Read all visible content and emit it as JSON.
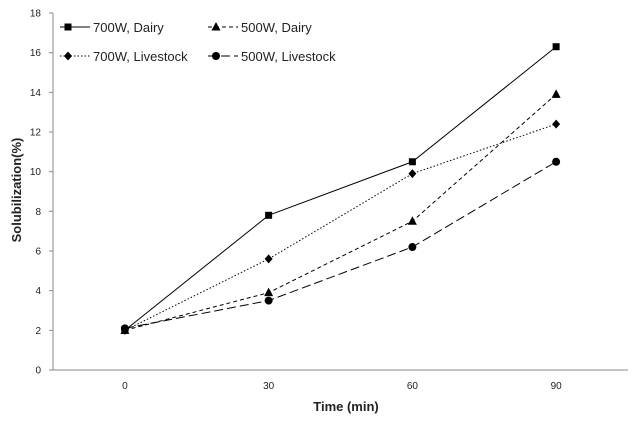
{
  "chart_data": {
    "type": "line",
    "title": "",
    "xlabel": "Time (min)",
    "ylabel": "Solubilization(%)",
    "x": [
      0,
      30,
      60,
      90
    ],
    "x_tick_labels": [
      "0",
      "30",
      "60",
      "90"
    ],
    "xlim": [
      -15,
      105
    ],
    "ylim": [
      0,
      18
    ],
    "y_ticks": [
      0,
      2,
      4,
      6,
      8,
      10,
      12,
      14,
      16,
      18
    ],
    "grid": false,
    "legend_placement": "top-left",
    "series": [
      {
        "name": "700W, Dairy",
        "values": [
          2.0,
          7.8,
          10.5,
          16.3
        ],
        "marker": "square",
        "line_style": "solid",
        "color": "#000000"
      },
      {
        "name": "500W, Dairy",
        "values": [
          2.0,
          3.9,
          7.5,
          13.9
        ],
        "marker": "triangle",
        "line_style": "dashed",
        "color": "#000000"
      },
      {
        "name": "700W, Livestock",
        "values": [
          2.0,
          5.6,
          9.9,
          12.4
        ],
        "marker": "diamond",
        "line_style": "dotted",
        "color": "#000000"
      },
      {
        "name": "500W, Livestock",
        "values": [
          2.1,
          3.5,
          6.2,
          10.5
        ],
        "marker": "circle",
        "line_style": "long-dash",
        "color": "#000000"
      }
    ]
  }
}
